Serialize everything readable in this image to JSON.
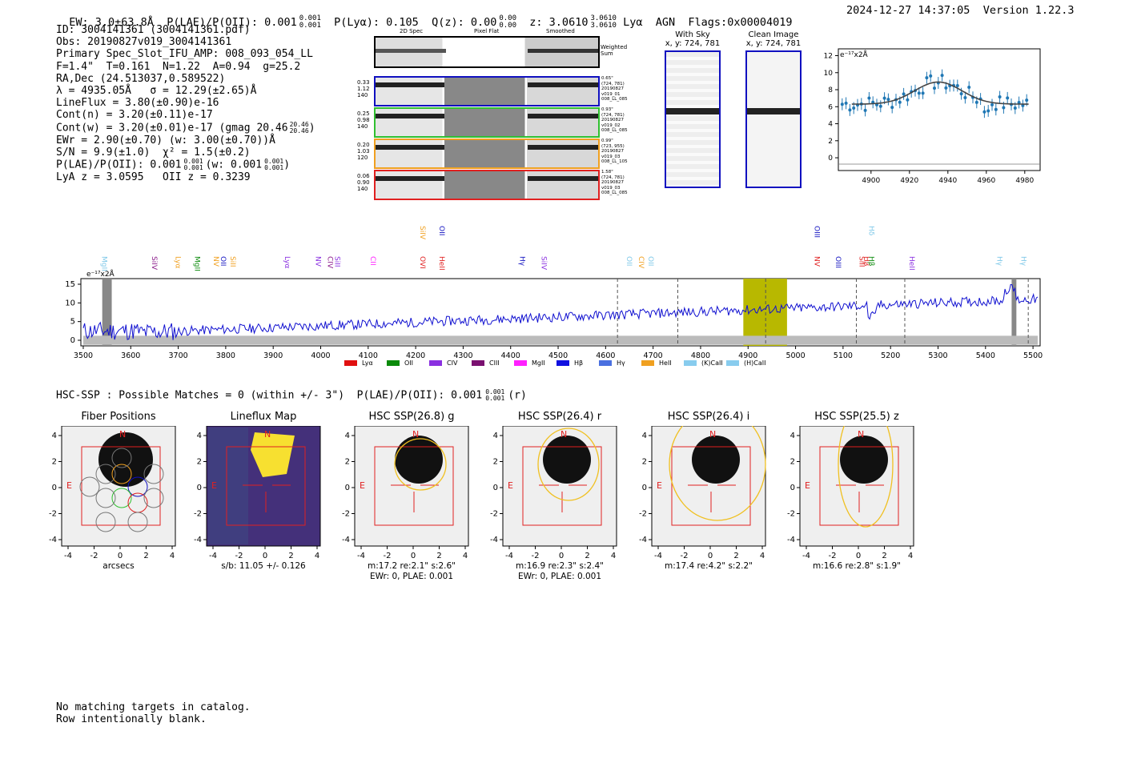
{
  "header": {
    "ew": "EW: 3.0±63.8Å",
    "plae_label": "P(LAE)/P(OII): 0.001",
    "plae_sup": "0.001",
    "plae_sub": "0.001",
    "plya": "P(Lyα): 0.105",
    "qz_label": "Q(z): 0.00",
    "qz_sup": "0.00",
    "qz_sub": "0.00",
    "z_label": "z: 3.0610",
    "z_sup": "3.0610",
    "z_sub": "3.0610",
    "line": "Lyα",
    "agn": "AGN",
    "flags": "Flags:0x00004019",
    "timestamp": "2024-12-27 14:37:05",
    "version": "Version 1.22.3"
  },
  "info": {
    "id": "ID: 3004141361 (3004141361.pdf)",
    "obs": "Obs: 20190827v019_3004141361",
    "primary": "Primary Spec_Slot_IFU_AMP: 008_093_054_LL",
    "fit": "F=1.4\"  T=0.161  N=1.22  A=0.94  g=25.2",
    "radec": "RA,Dec (24.513037,0.589522)",
    "lambda": "λ = 4935.05Å   σ = 12.29(±2.65)Å",
    "lineflux": "LineFlux = 3.80(±0.90)e-16",
    "contn": "Cont(n) = 3.20(±0.11)e-17",
    "contw": "Cont(w) = 3.20(±0.01)e-17 (gmag 20.46",
    "gmag_sup": "20.46",
    "gmag_sub": "20.46",
    "ewr": "EWr = 2.90(±0.70) (w: 3.00(±0.70))Å",
    "sn": "S/N = 9.9(±1.0)  χ² = 1.5(±0.2)",
    "plae": "P(LAE)/P(OII): 0.001",
    "plae_sup": "0.001",
    "plae_sub": "0.001",
    "plae_w": "(w: 0.001",
    "plae_w_sup": "0.001",
    "plae_w_sub": "0.001",
    "lyaz": "LyA z = 3.0595   OII z = 0.3239"
  },
  "stamps": {
    "col_2d": "2D Spec",
    "col_flat": "Pixel Flat",
    "col_smooth": "Smoothed",
    "weighted": "Weighted Sum",
    "rows": [
      {
        "color": "#1010c0",
        "vals": [
          "0.33",
          "1.12",
          "140"
        ],
        "meta": [
          "0.65\"",
          "(724, 781)",
          "20190827",
          "v019_01",
          "008_LL_085"
        ]
      },
      {
        "color": "#30c030",
        "vals": [
          "0.25",
          "0.98",
          "140"
        ],
        "meta": [
          "0.93\"",
          "(724, 781)",
          "20190827",
          "v019_02",
          "008_LL_085"
        ]
      },
      {
        "color": "#f0a020",
        "vals": [
          "0.20",
          "1.03",
          "120"
        ],
        "meta": [
          "0.99\"",
          "(723, 955)",
          "20190827",
          "v019_03",
          "008_LL_105"
        ]
      },
      {
        "color": "#e02020",
        "vals": [
          "0.06",
          "0.90",
          "140"
        ],
        "meta": [
          "1.58\"",
          "(724, 781)",
          "20190827",
          "v019_03",
          "008_LL_085"
        ]
      }
    ]
  },
  "sky": {
    "with_sky": "With Sky",
    "with_sky_xy": "x, y: 724, 781",
    "clean": "Clean Image",
    "clean_xy": "x, y: 724, 781"
  },
  "zoom_chart": {
    "ylabel": "e⁻¹⁷x2Å",
    "yticks": [
      "0",
      "2",
      "4",
      "6",
      "8",
      "10",
      "12"
    ],
    "xticks": [
      "4900",
      "4920",
      "4940",
      "4960",
      "4980"
    ]
  },
  "full_spectrum": {
    "ylabel": "e⁻¹⁷x2Å",
    "yticks": [
      "0",
      "5",
      "10",
      "15"
    ],
    "xticks": [
      "3500",
      "3600",
      "3700",
      "3800",
      "3900",
      "4000",
      "4100",
      "4200",
      "4300",
      "4400",
      "4500",
      "4600",
      "4700",
      "4800",
      "4900",
      "5000",
      "5100",
      "5200",
      "5300",
      "5400",
      "5500"
    ],
    "line_labels": [
      {
        "t": "MgII",
        "w": 3535,
        "c": "#7ec8e8",
        "row": 1
      },
      {
        "t": "SiIV",
        "w": 3640,
        "c": "#8a1a8a",
        "row": 1
      },
      {
        "t": "Lyα",
        "w": 3690,
        "c": "#f0a020",
        "row": 1
      },
      {
        "t": "MgII",
        "w": 3730,
        "c": "#0a8a0a",
        "row": 1
      },
      {
        "t": "NV",
        "w": 3770,
        "c": "#f0a020",
        "row": 1
      },
      {
        "t": "SiII",
        "w": 3805,
        "c": "#f0a020",
        "row": 1
      },
      {
        "t": "OII",
        "w": 3785,
        "c": "#1010c0",
        "row": 1
      },
      {
        "t": "Lyα",
        "w": 3920,
        "c": "#8a30e0",
        "row": 1
      },
      {
        "t": "NV",
        "w": 3985,
        "c": "#8a30e0",
        "row": 1
      },
      {
        "t": "CIV",
        "w": 4010,
        "c": "#8a1a8a",
        "row": 1
      },
      {
        "t": "SiII",
        "w": 4025,
        "c": "#8a30e0",
        "row": 1
      },
      {
        "t": "CII",
        "w": 4100,
        "c": "#ff20ff",
        "row": 1
      },
      {
        "t": "OVI",
        "w": 4205,
        "c": "#e02020",
        "row": 1
      },
      {
        "t": "HeII",
        "w": 4245,
        "c": "#e02020",
        "row": 1
      },
      {
        "t": "SiIV",
        "w": 4205,
        "c": "#f0a020",
        "row": 2
      },
      {
        "t": "OII",
        "w": 4245,
        "c": "#1010c0",
        "row": 2
      },
      {
        "t": "Hγ",
        "w": 4415,
        "c": "#1010c0",
        "row": 1
      },
      {
        "t": "SiIV",
        "w": 4460,
        "c": "#8a30e0",
        "row": 1
      },
      {
        "t": "OII",
        "w": 4640,
        "c": "#7ec8e8",
        "row": 1
      },
      {
        "t": "CIV",
        "w": 4665,
        "c": "#f0a020",
        "row": 1
      },
      {
        "t": "OII",
        "w": 4685,
        "c": "#7ec8e8",
        "row": 1
      },
      {
        "t": "NV",
        "w": 5035,
        "c": "#e02020",
        "row": 1
      },
      {
        "t": "OIII",
        "w": 5080,
        "c": "#1010c0",
        "row": 1
      },
      {
        "t": "OIII",
        "w": 5035,
        "c": "#1010c0",
        "row": 2
      },
      {
        "t": "SiII",
        "w": 5130,
        "c": "#e02020",
        "row": 1
      },
      {
        "t": "Hβ",
        "w": 5140,
        "c": "#e02020",
        "row": 1
      },
      {
        "t": "Hβ",
        "w": 5150,
        "c": "#0a8a0a",
        "row": 1
      },
      {
        "t": "Hδ",
        "w": 5150,
        "c": "#7ec8e8",
        "row": 2
      },
      {
        "t": "HeII",
        "w": 5235,
        "c": "#8a30e0",
        "row": 1
      },
      {
        "t": "Hγ",
        "w": 5420,
        "c": "#7ec8e8",
        "row": 1
      },
      {
        "t": "Hγ",
        "w": 5470,
        "c": "#7ec8e8",
        "row": 1
      }
    ],
    "legend": [
      {
        "t": "Lyα",
        "c": "#e01010"
      },
      {
        "t": "OII",
        "c": "#0a8a0a"
      },
      {
        "t": "CIV",
        "c": "#8a30e0"
      },
      {
        "t": "CIII",
        "c": "#7a1070"
      },
      {
        "t": "MgII",
        "c": "#ff20ff"
      },
      {
        "t": "Hβ",
        "c": "#1010e0"
      },
      {
        "t": "Hγ",
        "c": "#4a70e0"
      },
      {
        "t": "HeII",
        "c": "#f0a020"
      },
      {
        "t": "(K)CaII",
        "c": "#88ccee"
      },
      {
        "t": "(H)CaII",
        "c": "#88ccee"
      }
    ]
  },
  "hsc": {
    "title": "HSC-SSP : Possible Matches = 0 (within +/- 3\")  P(LAE)/P(OII): 0.001",
    "title_sup": "0.001",
    "title_sub": "0.001",
    "title_tail": "(r)",
    "panels": [
      {
        "title": "Fiber Positions",
        "cap1": "arcsecs",
        "cap2": ""
      },
      {
        "title": "Lineflux Map",
        "cap1": "s/b: 11.05 +/- 0.126",
        "cap2": ""
      },
      {
        "title": "HSC SSP(26.8) g",
        "cap1": "m:17.2  re:2.1\"  s:2.6\"",
        "cap2": "EWr: 0, PLAE: 0.001"
      },
      {
        "title": "HSC SSP(26.4) r",
        "cap1": "m:16.9  re:2.3\"  s:2.4\"",
        "cap2": "EWr: 0, PLAE: 0.001"
      },
      {
        "title": "HSC SSP(26.4) i",
        "cap1": "m:17.4  re:4.2\"  s:2.2\"",
        "cap2": ""
      },
      {
        "title": "HSC SSP(25.5) z",
        "cap1": "m:16.6  re:2.8\"  s:1.9\"",
        "cap2": ""
      }
    ],
    "ticks": [
      "-4",
      "-2",
      "0",
      "2",
      "4"
    ],
    "north": "N",
    "east": "E"
  },
  "footer": {
    "line1": "No matching targets in catalog.",
    "line2": "Row intentionally blank."
  }
}
